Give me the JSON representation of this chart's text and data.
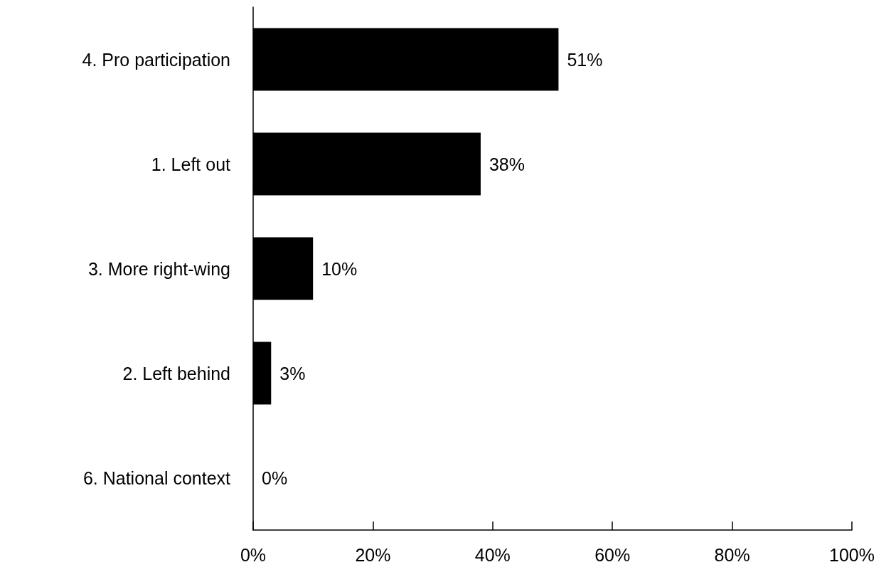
{
  "chart_data": {
    "type": "bar",
    "orientation": "horizontal",
    "categories": [
      "4. Pro participation",
      "1. Left out",
      "3. More right-wing",
      "2. Left behind",
      "6. National context"
    ],
    "values": [
      51,
      38,
      10,
      3,
      0
    ],
    "color": "#000000",
    "value_labels": [
      "51%",
      "38%",
      "10%",
      "3%",
      "0%"
    ],
    "xlim": [
      0,
      100
    ],
    "xticks": [
      {
        "value": 0,
        "label": "0%"
      },
      {
        "value": 20,
        "label": "20%"
      },
      {
        "value": 40,
        "label": "40%"
      },
      {
        "value": 60,
        "label": "60%"
      },
      {
        "value": 80,
        "label": "80%"
      },
      {
        "value": 100,
        "label": "100%"
      }
    ],
    "grid": false
  }
}
